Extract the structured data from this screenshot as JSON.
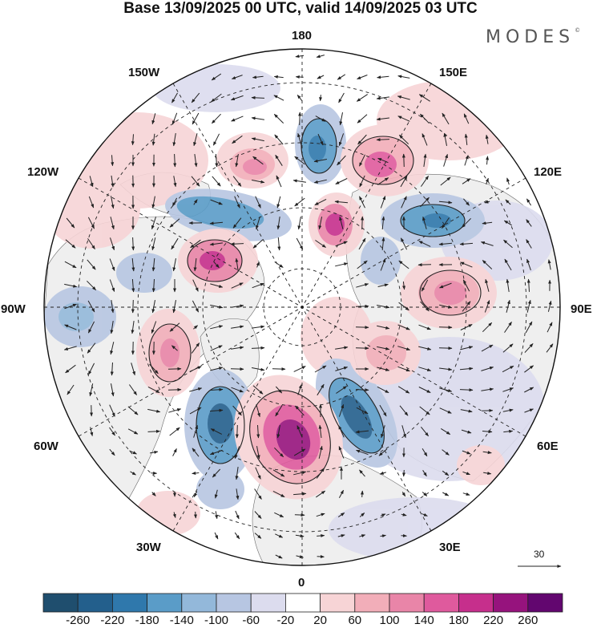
{
  "title": "Base 13/09/2025 00 UTC, valid 14/09/2025 03 UTC",
  "logo": "MODES",
  "logo_mark": "©",
  "longitude_labels": {
    "lon_180": "180",
    "lon_150e": "150E",
    "lon_120e": "120E",
    "lon_90e": "90E",
    "lon_60e": "60E",
    "lon_30e": "30E",
    "lon_0": "0",
    "lon_30w": "30W",
    "lon_60w": "60W",
    "lon_90w": "90W",
    "lon_120w": "120W",
    "lon_150w": "150W"
  },
  "colorbar": {
    "labels": [
      "-260",
      "-220",
      "-180",
      "-140",
      "-100",
      "-60",
      "-20",
      "20",
      "60",
      "100",
      "140",
      "180",
      "220",
      "260"
    ],
    "colors": [
      "#1f4e6e",
      "#235f8c",
      "#2f78ac",
      "#5a9cc8",
      "#93b8da",
      "#b7c6e2",
      "#dcdcee",
      "#ffffff",
      "#f7d4d6",
      "#f2aeb9",
      "#e985a8",
      "#df5a9d",
      "#c62f8c",
      "#96137d",
      "#62066f"
    ]
  },
  "wind_scale": {
    "value": "30"
  },
  "colors": {
    "land": "#efefef",
    "ocean": "#ffffff",
    "grid": "#222222",
    "coast": "#555555"
  }
}
